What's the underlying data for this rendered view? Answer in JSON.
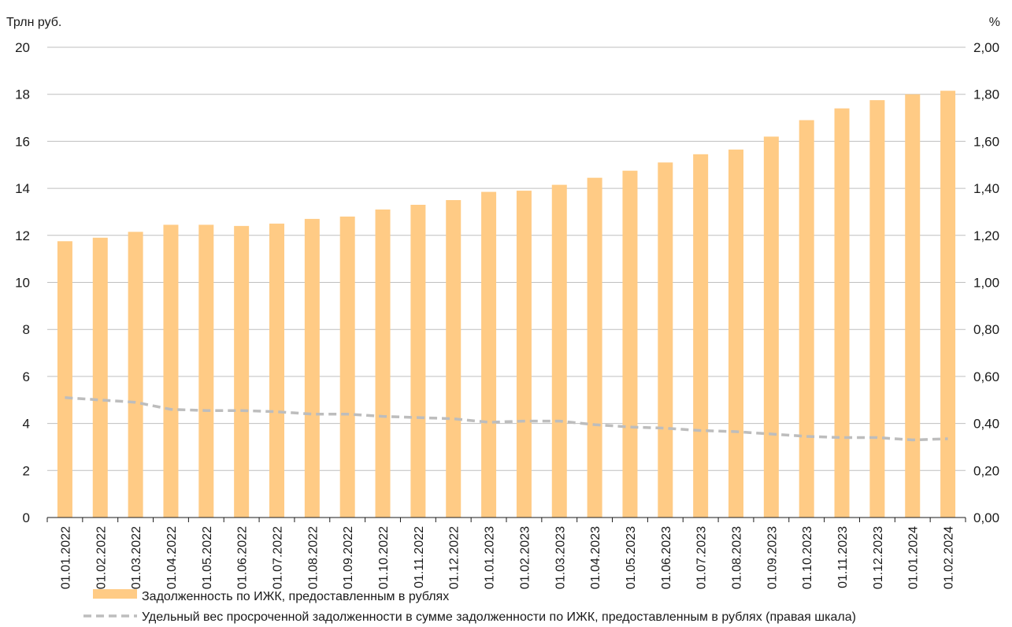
{
  "colors": {
    "bar": "#FFCB85",
    "line": "#BDBDBD",
    "grid": "#BFBFBF",
    "axis": "#1a1a1a",
    "text": "#1a1a1a"
  },
  "chart_data": {
    "type": "bar",
    "title": "",
    "y_left_label": "Трлн руб.",
    "y_right_label": "%",
    "ylim_left": [
      0,
      20
    ],
    "ylim_right": [
      0,
      2
    ],
    "y_left_ticks": [
      "0",
      "2",
      "4",
      "6",
      "8",
      "10",
      "12",
      "14",
      "16",
      "18",
      "20"
    ],
    "y_right_ticks": [
      "0,00",
      "0,20",
      "0,40",
      "0,60",
      "0,80",
      "1,00",
      "1,20",
      "1,40",
      "1,60",
      "1,80",
      "2,00"
    ],
    "grid": true,
    "legend_position": "bottom",
    "categories": [
      "01.01.2022",
      "01.02.2022",
      "01.03.2022",
      "01.04.2022",
      "01.05.2022",
      "01.06.2022",
      "01.07.2022",
      "01.08.2022",
      "01.09.2022",
      "01.10.2022",
      "01.11.2022",
      "01.12.2022",
      "01.01.2023",
      "01.02.2023",
      "01.03.2023",
      "01.04.2023",
      "01.05.2023",
      "01.06.2023",
      "01.07.2023",
      "01.08.2023",
      "01.09.2023",
      "01.10.2023",
      "01.11.2023",
      "01.12.2023",
      "01.01.2024",
      "01.02.2024"
    ],
    "series": [
      {
        "name": "Задолженность по ИЖК, предоставленным в рублях",
        "type": "bar",
        "axis": "left",
        "values": [
          11.75,
          11.9,
          12.15,
          12.45,
          12.45,
          12.4,
          12.5,
          12.7,
          12.8,
          13.1,
          13.3,
          13.5,
          13.85,
          13.9,
          14.15,
          14.45,
          14.75,
          15.1,
          15.45,
          15.65,
          16.2,
          16.9,
          17.4,
          17.75,
          18.0,
          18.15
        ]
      },
      {
        "name": "Удельный вес просроченной задолженности в сумме задолженности по ИЖК, предоставленным в рублях (правая шкала)",
        "type": "line",
        "style": "dashed",
        "axis": "right",
        "values": [
          0.51,
          0.5,
          0.49,
          0.46,
          0.455,
          0.455,
          0.45,
          0.44,
          0.44,
          0.43,
          0.425,
          0.42,
          0.405,
          0.41,
          0.41,
          0.395,
          0.385,
          0.38,
          0.37,
          0.365,
          0.355,
          0.345,
          0.34,
          0.34,
          0.33,
          0.335
        ]
      }
    ]
  }
}
